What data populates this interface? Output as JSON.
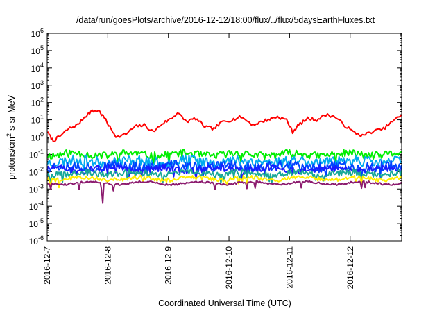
{
  "chart_data": {
    "type": "line",
    "title": "/data/run/goesPlots/archive/2016-12-12/18:00/flux/../flux/5daysEarthFluxes.txt",
    "xlabel": "Coordinated Universal Time (UTC)",
    "ylabel_parts": {
      "prefix": "protons/cm",
      "sup": "2",
      "suffix": "-s-sr-MeV"
    },
    "x_tick_labels": [
      "2016-12-7",
      "2016-12-8",
      "2016-12-9",
      "2016-12-10",
      "2016-12-11",
      "2016-12-12"
    ],
    "x_range_days": [
      0,
      5.85
    ],
    "y_scale": "log",
    "ylim": [
      1e-06,
      1000000.0
    ],
    "y_tick_exponents": [
      -6,
      -5,
      -4,
      -3,
      -2,
      -1,
      0,
      1,
      2,
      3,
      4,
      5,
      6
    ],
    "grid": false,
    "legend": "none",
    "series": [
      {
        "color": "#ff0000",
        "points": [
          [
            0.0,
            2.0
          ],
          [
            0.1,
            0.6
          ],
          [
            0.22,
            1.2
          ],
          [
            0.35,
            3.0
          ],
          [
            0.5,
            5.0
          ],
          [
            0.62,
            15
          ],
          [
            0.72,
            30
          ],
          [
            0.85,
            35
          ],
          [
            0.95,
            12
          ],
          [
            1.05,
            3
          ],
          [
            1.15,
            1
          ],
          [
            1.3,
            1.5
          ],
          [
            1.45,
            4
          ],
          [
            1.6,
            5
          ],
          [
            1.75,
            2
          ],
          [
            1.9,
            6
          ],
          [
            2.05,
            12
          ],
          [
            2.15,
            25
          ],
          [
            2.3,
            8
          ],
          [
            2.45,
            12
          ],
          [
            2.6,
            4
          ],
          [
            2.75,
            3
          ],
          [
            2.9,
            8
          ],
          [
            3.05,
            10
          ],
          [
            3.2,
            15
          ],
          [
            3.4,
            5
          ],
          [
            3.55,
            8
          ],
          [
            3.7,
            12
          ],
          [
            3.8,
            15
          ],
          [
            3.95,
            10
          ],
          [
            4.05,
            2
          ],
          [
            4.15,
            5
          ],
          [
            4.3,
            12
          ],
          [
            4.45,
            10
          ],
          [
            4.6,
            20
          ],
          [
            4.75,
            15
          ],
          [
            4.9,
            5
          ],
          [
            5.05,
            2
          ],
          [
            5.2,
            1.2
          ],
          [
            5.35,
            2
          ],
          [
            5.55,
            3
          ],
          [
            5.7,
            8
          ],
          [
            5.85,
            20
          ]
        ]
      },
      {
        "color": "#00ee00",
        "base": 0.1,
        "amp": 0.22,
        "seed": 11
      },
      {
        "color": "#00aaee",
        "base": 0.04,
        "amp": 0.3,
        "seed": 23
      },
      {
        "color": "#0044ff",
        "base": 0.02,
        "amp": 0.3,
        "seed": 37
      },
      {
        "color": "#1a1aff",
        "base": 0.014,
        "amp": 0.2,
        "seed": 51
      },
      {
        "color": "#18a898",
        "base": 0.008,
        "amp": 0.18,
        "seed": 67
      },
      {
        "color": "#ffee00",
        "base": 0.004,
        "amp": 0.12,
        "seed": 79
      },
      {
        "color": "#8b1a6e",
        "base": 0.0022,
        "amp": 0.06,
        "seed": 91,
        "spike_at": 0.92,
        "spike_value": 0.00015
      }
    ]
  }
}
